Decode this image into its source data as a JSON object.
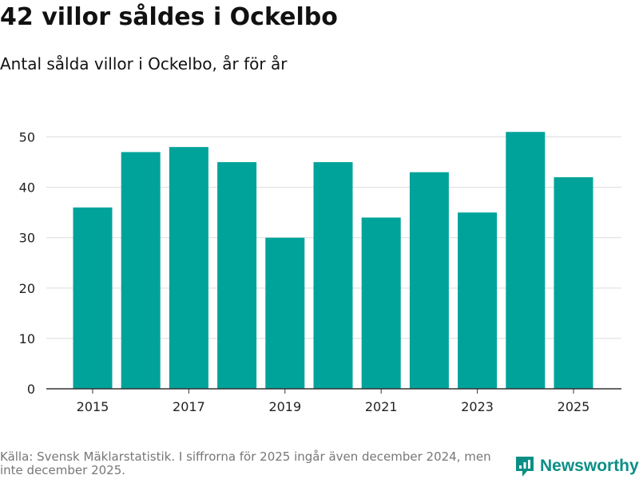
{
  "title": "42 villor såldes i Ockelbo",
  "subtitle": "Antal sålda villor i Ockelbo, år för år",
  "source": "Källa: Svensk Mäklarstatistik. I siffrorna för 2025 ingår även december 2024, men inte december 2025.",
  "brand": {
    "name": "Newsworthy",
    "logo_icon": "newsworthy-logo-icon"
  },
  "colors": {
    "bar": "#00a39a",
    "grid": "#dddddd",
    "axis": "#333333",
    "brand": "#0a8f86"
  },
  "chart_data": {
    "type": "bar",
    "categories": [
      "2015",
      "2016",
      "2017",
      "2018",
      "2019",
      "2020",
      "2021",
      "2022",
      "2023",
      "2024",
      "2025"
    ],
    "values": [
      36,
      47,
      48,
      45,
      30,
      45,
      34,
      43,
      35,
      51,
      42
    ],
    "x_tick_labels": [
      "2015",
      "2017",
      "2019",
      "2021",
      "2023",
      "2025"
    ],
    "y_ticks": [
      0,
      10,
      20,
      30,
      40,
      50
    ],
    "ylim": [
      0,
      50
    ],
    "title": "42 villor såldes i Ockelbo",
    "subtitle": "Antal sålda villor i Ockelbo, år för år",
    "xlabel": "",
    "ylabel": "",
    "grid": true
  }
}
